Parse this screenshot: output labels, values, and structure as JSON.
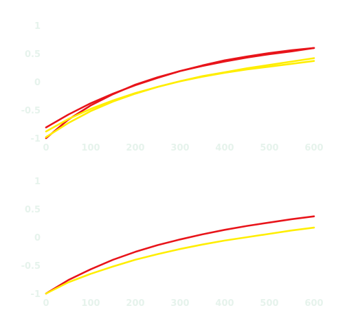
{
  "colors": {
    "red": "#e8141a",
    "yellow": "#ffee00",
    "tick_text": "#e6f3ec"
  },
  "chart_data": [
    {
      "type": "line",
      "xlim": [
        0,
        600
      ],
      "ylim": [
        -1,
        1
      ],
      "x_ticks": [
        0,
        100,
        200,
        300,
        400,
        500,
        600
      ],
      "x_tick_labels": [
        "0",
        "100",
        "200",
        "300",
        "400",
        "500",
        "600"
      ],
      "y_ticks": [
        1,
        0.5,
        0,
        -0.5,
        -1
      ],
      "y_tick_labels": [
        "1",
        "0.5",
        "0",
        "-0.5",
        "-1"
      ],
      "grid": false,
      "series": [
        {
          "color": "#e8141a",
          "x": [
            0,
            50,
            100,
            150,
            200,
            250,
            300,
            350,
            400,
            450,
            500,
            550,
            600
          ],
          "y": [
            -0.81,
            -0.58,
            -0.38,
            -0.21,
            -0.06,
            0.07,
            0.19,
            0.29,
            0.38,
            0.45,
            0.51,
            0.56,
            0.6
          ]
        },
        {
          "color": "#e8141a",
          "x": [
            0,
            50,
            100,
            150,
            200,
            250,
            300,
            350,
            400,
            450,
            500,
            550,
            600
          ],
          "y": [
            -1,
            -0.67,
            -0.42,
            -0.22,
            -0.05,
            0.08,
            0.19,
            0.28,
            0.36,
            0.43,
            0.49,
            0.54,
            0.6
          ]
        },
        {
          "color": "#ffee00",
          "x": [
            0,
            50,
            100,
            150,
            200,
            250,
            300,
            350,
            400,
            450,
            500,
            550,
            600
          ],
          "y": [
            -0.88,
            -0.66,
            -0.48,
            -0.33,
            -0.2,
            -0.09,
            0.01,
            0.1,
            0.17,
            0.24,
            0.3,
            0.36,
            0.42
          ]
        },
        {
          "color": "#ffee00",
          "x": [
            0,
            50,
            100,
            150,
            200,
            250,
            300,
            350,
            400,
            450,
            500,
            550,
            600
          ],
          "y": [
            -0.98,
            -0.73,
            -0.52,
            -0.35,
            -0.21,
            -0.09,
            0.01,
            0.09,
            0.16,
            0.22,
            0.27,
            0.32,
            0.37
          ]
        }
      ]
    },
    {
      "type": "line",
      "xlim": [
        0,
        600
      ],
      "ylim": [
        -1,
        1
      ],
      "x_ticks": [
        0,
        100,
        200,
        300,
        400,
        500,
        600
      ],
      "x_tick_labels": [
        "0",
        "100",
        "200",
        "300",
        "400",
        "500",
        "600"
      ],
      "y_ticks": [
        1,
        0.5,
        0,
        -0.5,
        -1
      ],
      "y_tick_labels": [
        "1",
        "0.5",
        "0",
        "-0.5",
        "-1"
      ],
      "grid": false,
      "series": [
        {
          "color": "#e8141a",
          "x": [
            0,
            50,
            100,
            150,
            200,
            250,
            300,
            350,
            400,
            450,
            500,
            550,
            600
          ],
          "y": [
            -1,
            -0.76,
            -0.57,
            -0.4,
            -0.26,
            -0.14,
            -0.04,
            0.05,
            0.13,
            0.2,
            0.26,
            0.32,
            0.37
          ]
        },
        {
          "color": "#ffee00",
          "x": [
            0,
            50,
            100,
            150,
            200,
            250,
            300,
            350,
            400,
            450,
            500,
            550,
            600
          ],
          "y": [
            -1,
            -0.8,
            -0.65,
            -0.52,
            -0.4,
            -0.3,
            -0.21,
            -0.13,
            -0.06,
            0.0,
            0.06,
            0.12,
            0.17
          ]
        }
      ]
    }
  ]
}
